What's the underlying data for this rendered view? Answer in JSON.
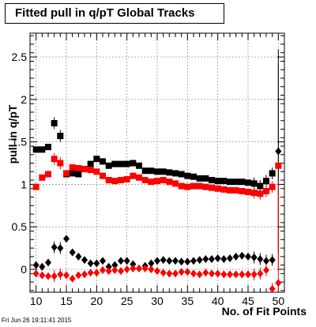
{
  "title": "Fitted pull in q/pT  Global Tracks",
  "footer_timestamp": "Fri Jun 26 19:11:41 2015",
  "chart_data": {
    "type": "scatter",
    "xlabel": "No. of Fit Points",
    "ylabel": "pull in q/pT",
    "xlim": [
      9,
      51
    ],
    "ylim": [
      -0.27,
      2.78
    ],
    "grid": true,
    "xticks": [
      10,
      15,
      20,
      25,
      30,
      35,
      40,
      45,
      50
    ],
    "yticks": [
      0,
      0.5,
      1,
      1.5,
      2,
      2.5
    ],
    "series": [
      {
        "marker": "square",
        "color": "#000000",
        "x": [
          10,
          11,
          12,
          13,
          14,
          15,
          16,
          17,
          18,
          19,
          20,
          21,
          22,
          23,
          24,
          25,
          26,
          27,
          28,
          29,
          30,
          31,
          32,
          33,
          34,
          35,
          36,
          37,
          38,
          39,
          40,
          41,
          42,
          43,
          44,
          45,
          46,
          47,
          48,
          49
        ],
        "values": [
          1.41,
          1.41,
          1.44,
          1.72,
          1.57,
          1.12,
          1.13,
          1.12,
          1.18,
          1.24,
          1.3,
          1.27,
          1.22,
          1.24,
          1.24,
          1.24,
          1.25,
          1.22,
          1.16,
          1.16,
          1.15,
          1.15,
          1.14,
          1.13,
          1.12,
          1.1,
          1.09,
          1.07,
          1.07,
          1.05,
          1.04,
          1.04,
          1.03,
          1.03,
          1.03,
          1.02,
          1.01,
          0.98,
          1.04,
          1.13
        ]
      },
      {
        "marker": "square",
        "color": "#ff0000",
        "x": [
          10,
          11,
          12,
          13,
          14,
          15,
          16,
          17,
          18,
          19,
          20,
          21,
          22,
          23,
          24,
          25,
          26,
          27,
          28,
          29,
          30,
          31,
          32,
          33,
          34,
          35,
          36,
          37,
          38,
          39,
          40,
          41,
          42,
          43,
          44,
          45,
          46,
          47,
          48,
          49,
          50
        ],
        "values": [
          0.97,
          1.08,
          1.12,
          1.3,
          1.25,
          1.13,
          1.2,
          1.19,
          1.18,
          1.17,
          1.15,
          1.1,
          1.05,
          1.04,
          1.05,
          1.06,
          1.1,
          1.08,
          1.05,
          1.03,
          1.04,
          1.05,
          1.03,
          1.01,
          0.98,
          0.97,
          0.98,
          0.98,
          0.97,
          0.96,
          0.95,
          0.94,
          0.93,
          0.93,
          0.92,
          0.91,
          0.9,
          0.89,
          0.92,
          0.97,
          1.22
        ]
      },
      {
        "marker": "diamond",
        "color": "#000000",
        "x": [
          10,
          11,
          12,
          13,
          14,
          15,
          16,
          17,
          18,
          19,
          20,
          21,
          22,
          23,
          24,
          25,
          26,
          27,
          28,
          29,
          30,
          31,
          32,
          33,
          34,
          35,
          36,
          37,
          38,
          39,
          40,
          41,
          42,
          43,
          44,
          45,
          46,
          47,
          48,
          49,
          50
        ],
        "values": [
          0.05,
          0.03,
          0.08,
          0.26,
          0.25,
          0.36,
          0.2,
          0.15,
          0.11,
          0.07,
          0.07,
          0.1,
          0.03,
          0.05,
          0.1,
          0.1,
          0.06,
          0.01,
          0.04,
          0.07,
          0.1,
          0.11,
          0.1,
          0.1,
          0.09,
          0.09,
          0.1,
          0.11,
          0.12,
          0.12,
          0.13,
          0.12,
          0.13,
          0.15,
          0.16,
          0.15,
          0.14,
          0.12,
          0.1,
          0.11,
          1.39
        ]
      },
      {
        "marker": "diamond",
        "color": "#ff0000",
        "x": [
          10,
          11,
          12,
          13,
          14,
          15,
          16,
          17,
          18,
          19,
          20,
          21,
          22,
          23,
          24,
          25,
          26,
          27,
          28,
          29,
          30,
          31,
          32,
          33,
          34,
          35,
          36,
          37,
          38,
          39,
          40,
          41,
          42,
          43,
          44,
          45,
          46,
          47,
          48,
          49,
          50
        ],
        "values": [
          -0.05,
          -0.07,
          -0.08,
          -0.08,
          -0.06,
          -0.07,
          -0.11,
          -0.07,
          -0.06,
          -0.04,
          -0.04,
          -0.01,
          -0.02,
          -0.01,
          -0.02,
          0.0,
          0.01,
          0.01,
          0.01,
          0.0,
          -0.02,
          -0.04,
          -0.05,
          -0.05,
          -0.03,
          -0.03,
          -0.05,
          -0.06,
          -0.04,
          -0.05,
          -0.05,
          -0.06,
          -0.06,
          -0.06,
          -0.06,
          -0.06,
          -0.06,
          -0.05,
          -0.01,
          -0.23,
          -0.16
        ]
      }
    ]
  }
}
